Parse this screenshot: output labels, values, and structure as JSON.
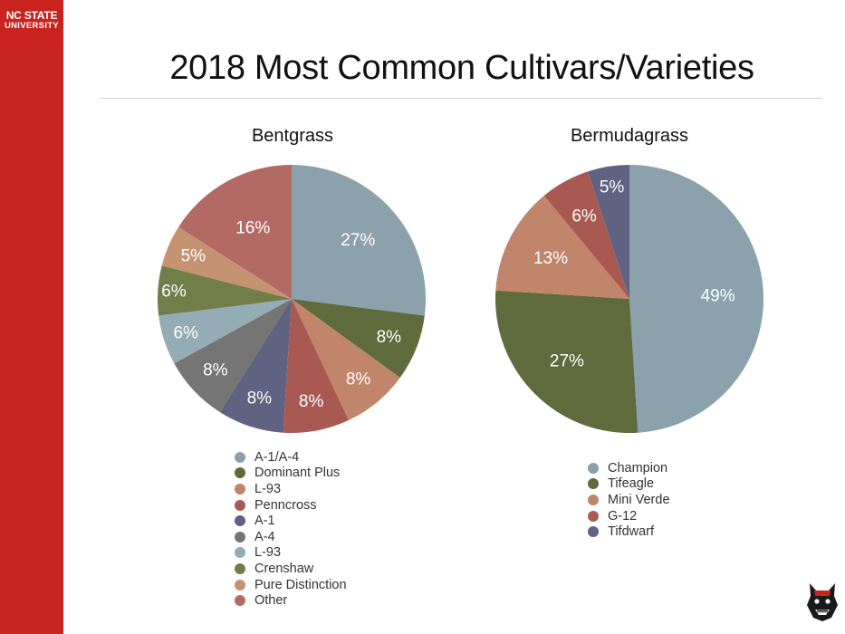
{
  "header": {
    "brand_line1": "NC STATE",
    "brand_line2": "UNIVERSITY",
    "title": "2018 Most Common Cultivars/Varieties"
  },
  "chart_data": [
    {
      "type": "pie",
      "title": "Bentgrass",
      "categories": [
        "A-1/A-4",
        "Dominant Plus",
        "L-93",
        "Penncross",
        "A-1",
        "A-4",
        "L-93",
        "Crenshaw",
        "Pure Distinction",
        "Other"
      ],
      "values": [
        27,
        8,
        8,
        8,
        8,
        8,
        6,
        6,
        5,
        16
      ],
      "labels": [
        "27%",
        "8%",
        "8%",
        "8%",
        "8%",
        "8%",
        "6%",
        "6%",
        "5%",
        "16%"
      ],
      "colors": [
        "#8ba1ab",
        "#5f6a3d",
        "#c0856a",
        "#a85a52",
        "#5f6280",
        "#757575",
        "#94acb5",
        "#717e4a",
        "#c69372",
        "#b36a64"
      ],
      "legend_position": "bottom"
    },
    {
      "type": "pie",
      "title": "Bermudagrass",
      "categories": [
        "Champion",
        "Tifeagle",
        "Mini Verde",
        "G-12",
        "Tifdwarf"
      ],
      "values": [
        49,
        27,
        13,
        6,
        5
      ],
      "labels": [
        "49%",
        "27%",
        "13%",
        "6%",
        "5%"
      ],
      "colors": [
        "#8ba1ab",
        "#5f6a3d",
        "#c0856a",
        "#a85a52",
        "#5f6280"
      ],
      "legend_position": "bottom"
    }
  ],
  "logo_icon": "wolf-mascot-icon"
}
